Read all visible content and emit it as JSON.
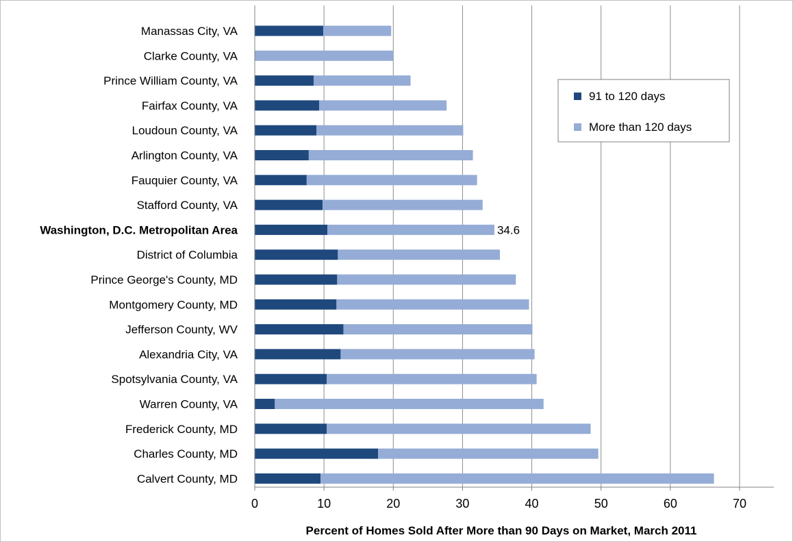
{
  "chart_data": {
    "type": "bar",
    "orientation": "horizontal",
    "stacked": true,
    "categories": [
      "Manassas City, VA",
      "Clarke County, VA",
      "Prince William County, VA",
      "Fairfax County, VA",
      "Loudoun County, VA",
      "Arlington County, VA",
      "Fauquier County, VA",
      "Stafford County, VA",
      "Washington, D.C. Metropolitan Area",
      "District of Columbia",
      "Prince George's County, MD",
      "Montgomery County, MD",
      "Jefferson County, WV",
      "Alexandria City, VA",
      "Spotsylvania County, VA",
      "Warren County, VA",
      "Frederick County, MD",
      "Charles County, MD",
      "Calvert County, MD"
    ],
    "bold_category": "Washington, D.C. Metropolitan Area",
    "series": [
      {
        "name": "91 to 120 days",
        "color": "#1f497d",
        "values": [
          9.9,
          0,
          8.5,
          9.3,
          8.9,
          7.8,
          7.5,
          9.8,
          10.5,
          12.0,
          11.9,
          11.8,
          12.8,
          12.4,
          10.4,
          2.9,
          10.4,
          17.8,
          9.5
        ]
      },
      {
        "name": "More than 120 days",
        "color": "#95acd6",
        "values": [
          9.8,
          20.0,
          14.0,
          18.4,
          21.2,
          23.7,
          24.6,
          23.1,
          24.1,
          23.4,
          25.8,
          27.8,
          27.3,
          28.0,
          30.3,
          38.8,
          38.1,
          31.8,
          56.8
        ]
      }
    ],
    "annotations": [
      {
        "category": "Washington, D.C. Metropolitan Area",
        "text": "34.6"
      }
    ],
    "xlabel": "Percent of Homes Sold After More than 90 Days on Market,  March 2011",
    "ylabel": "",
    "xlim": [
      0,
      70
    ],
    "xticks": [
      0,
      10,
      20,
      30,
      40,
      50,
      60,
      70
    ],
    "grid": true,
    "legend_position": "top-right"
  }
}
